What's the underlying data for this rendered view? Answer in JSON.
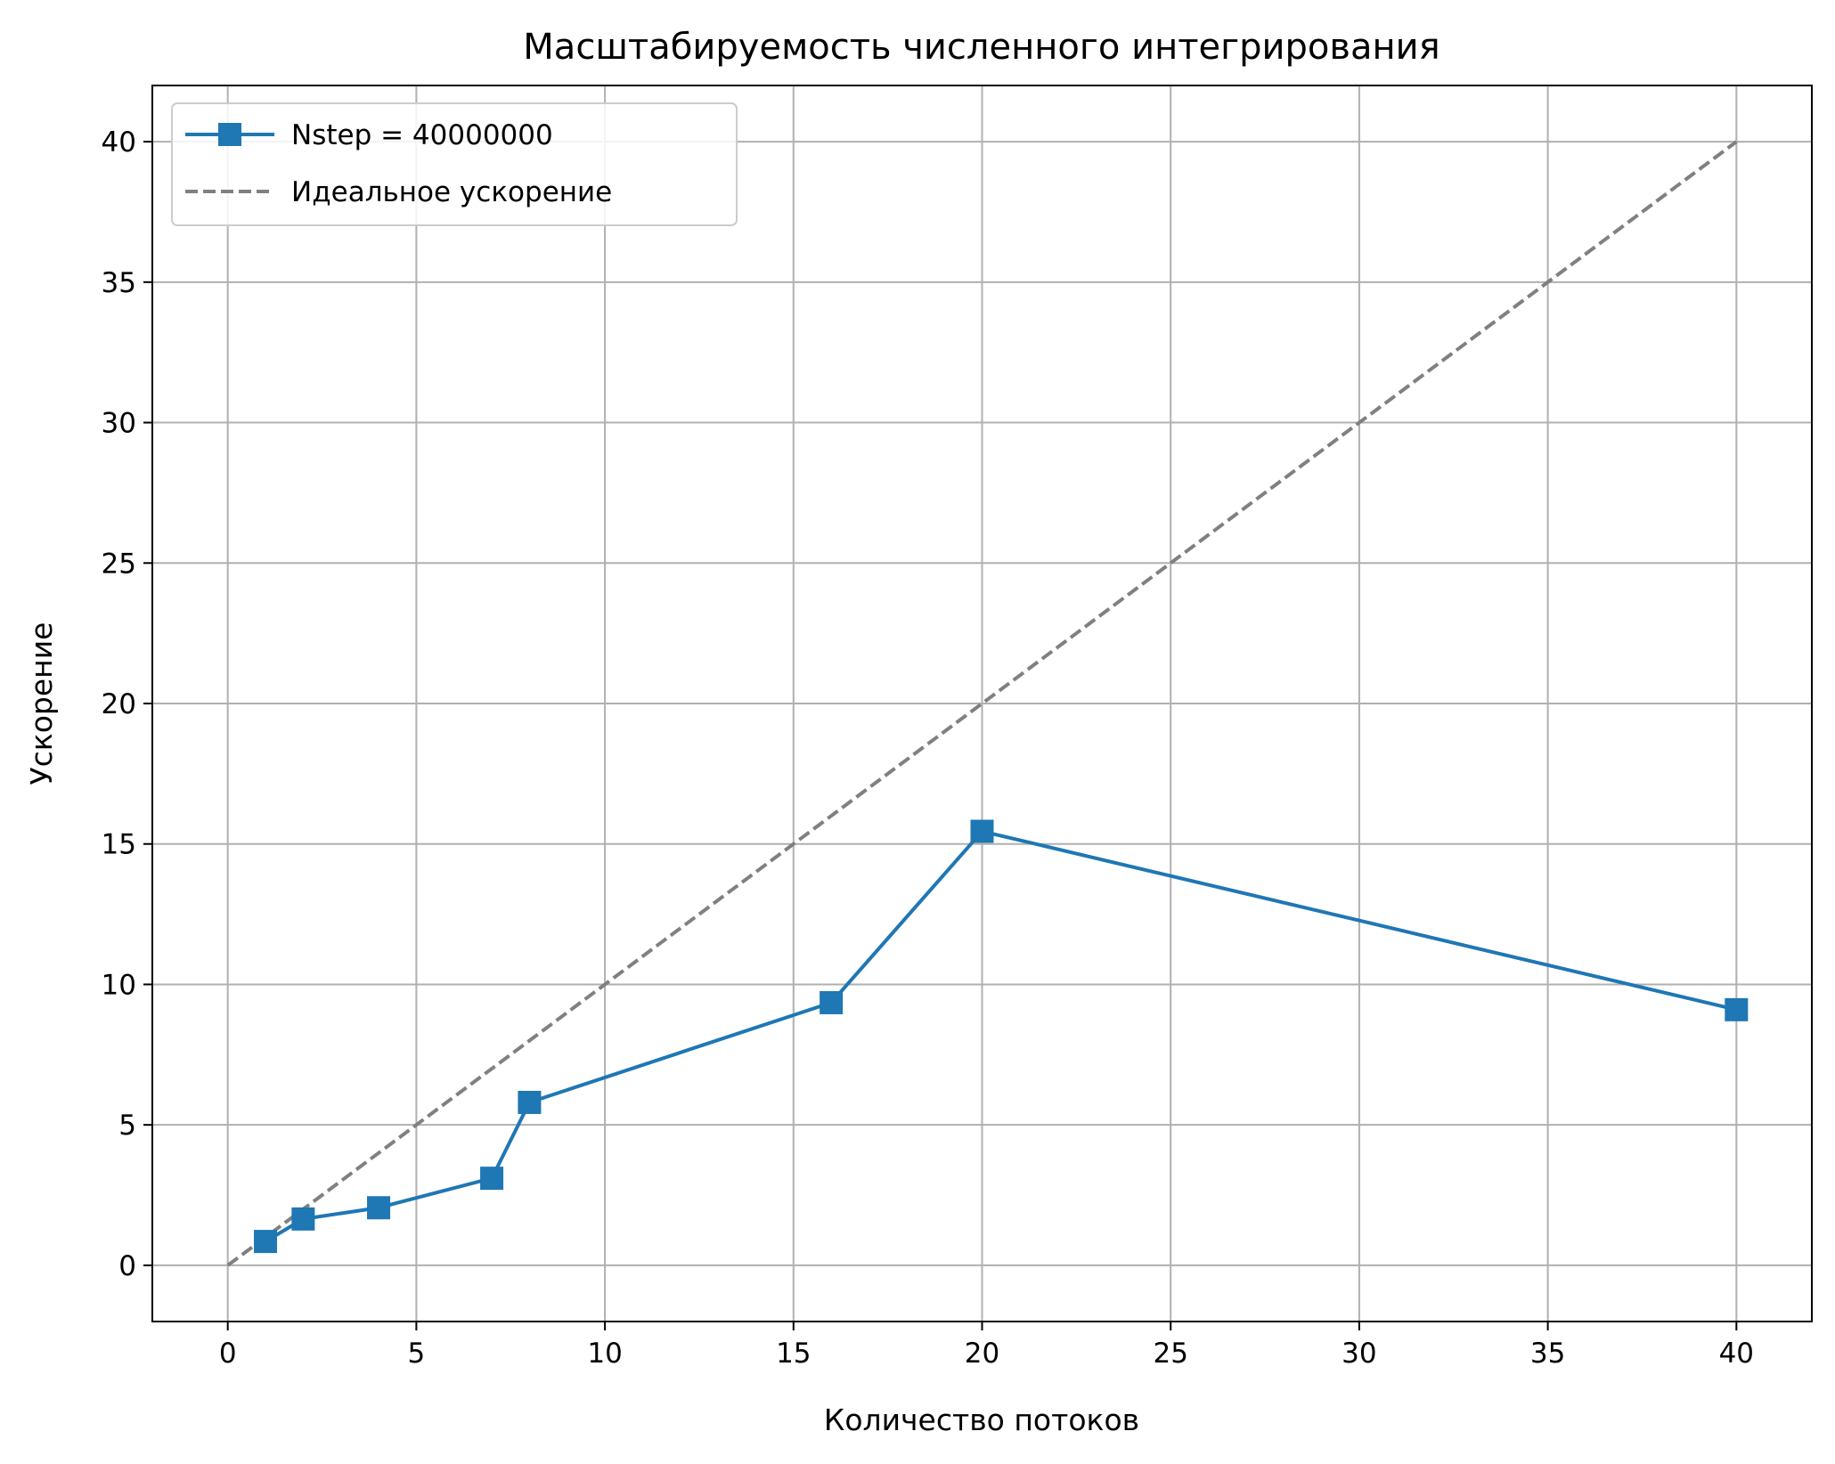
{
  "chart_data": {
    "type": "line",
    "title": "Масштабируемость численного интегрирования",
    "xlabel": "Количество потоков",
    "ylabel": "Ускорение",
    "xlim": [
      -2,
      42
    ],
    "ylim": [
      -2,
      42
    ],
    "xticks": [
      0,
      5,
      10,
      15,
      20,
      25,
      30,
      35,
      40
    ],
    "yticks": [
      0,
      5,
      10,
      15,
      20,
      25,
      30,
      35,
      40
    ],
    "grid": true,
    "legend_position": "upper-left",
    "series": [
      {
        "name": "Nstep = 40000000",
        "style": "solid",
        "marker": "square",
        "color": "#1f77b4",
        "x": [
          1,
          2,
          4,
          7,
          8,
          16,
          20,
          40
        ],
        "y": [
          0.85,
          1.65,
          2.05,
          3.1,
          5.8,
          9.35,
          15.45,
          9.1
        ]
      },
      {
        "name": "Идеальное ускорение",
        "style": "dashed",
        "marker": "none",
        "color": "#808080",
        "x": [
          0,
          40
        ],
        "y": [
          0,
          40
        ]
      }
    ]
  }
}
